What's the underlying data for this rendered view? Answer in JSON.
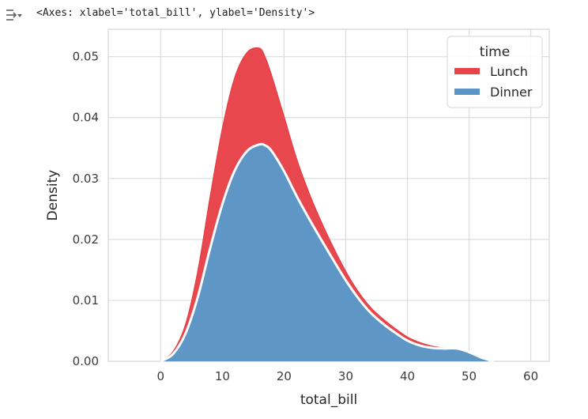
{
  "output": {
    "repr_text": "<Axes: xlabel='total_bill', ylabel='Density'>",
    "icon": "output-expand-icon"
  },
  "chart_data": {
    "type": "area",
    "stacked": true,
    "title": "",
    "xlabel": "total_bill",
    "ylabel": "Density",
    "xlim": [
      -8.5,
      63
    ],
    "ylim": [
      0,
      0.0545
    ],
    "xticks": [
      0,
      10,
      20,
      30,
      40,
      50,
      60
    ],
    "yticks": [
      0.0,
      0.01,
      0.02,
      0.03,
      0.04,
      0.05
    ],
    "ytick_labels": [
      "0.00",
      "0.01",
      "0.02",
      "0.03",
      "0.04",
      "0.05"
    ],
    "grid": true,
    "legend": {
      "title": "time",
      "placement": "top-right"
    },
    "x": [
      0,
      2,
      4,
      6,
      8,
      10,
      12,
      14,
      16,
      17,
      18,
      20,
      22,
      24,
      26,
      28,
      30,
      32,
      34,
      36,
      38,
      40,
      42,
      44,
      46,
      48,
      50,
      52,
      54
    ],
    "series": [
      {
        "name": "Dinner",
        "color": "#5b94c5",
        "values": [
          0.0,
          0.0012,
          0.0045,
          0.0105,
          0.0185,
          0.0258,
          0.0313,
          0.0345,
          0.0356,
          0.0354,
          0.0345,
          0.0312,
          0.0272,
          0.0235,
          0.02,
          0.0166,
          0.0133,
          0.0104,
          0.008,
          0.0062,
          0.0047,
          0.0034,
          0.0026,
          0.0022,
          0.0021,
          0.0021,
          0.0015,
          0.0006,
          0.0
        ]
      },
      {
        "name": "Lunch",
        "color": "#e8434a",
        "values": [
          0.0,
          0.0004,
          0.0015,
          0.0043,
          0.0085,
          0.0125,
          0.0153,
          0.0162,
          0.0158,
          0.0144,
          0.0124,
          0.009,
          0.0062,
          0.0043,
          0.003,
          0.0021,
          0.0015,
          0.0011,
          0.0009,
          0.0008,
          0.0007,
          0.0006,
          0.0005,
          0.0003,
          0.0001,
          0.0,
          0.0,
          0.0,
          0.0
        ]
      }
    ]
  }
}
